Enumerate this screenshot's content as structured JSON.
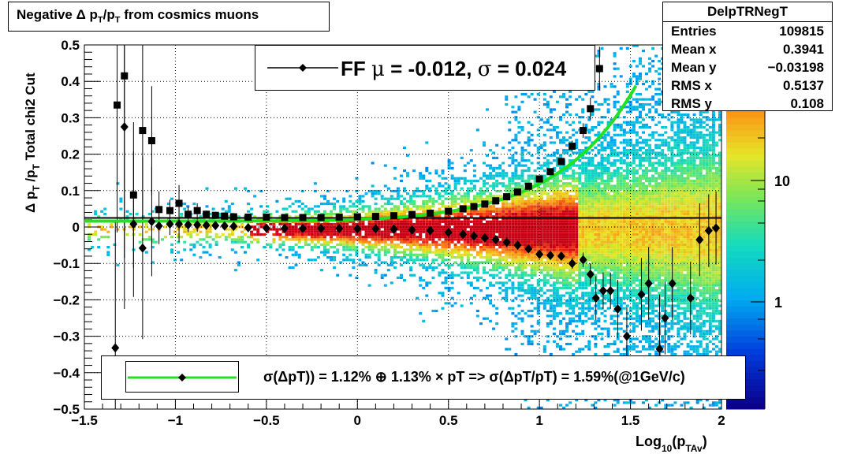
{
  "title": "Negative Δ pₜ/pₜ from cosmics muons",
  "title_parts": {
    "main": "Negative Δ p",
    "sub1": "T",
    "mid": "/p",
    "sub2": "T",
    "tail": "  from cosmics muons"
  },
  "stats": {
    "name": "DelpTRNegT",
    "rows": [
      {
        "key": "Entries",
        "value": "109815"
      },
      {
        "key": "Mean x",
        "value": "0.3941"
      },
      {
        "key": "Mean y",
        "value": "−0.03198"
      },
      {
        "key": "RMS x",
        "value": "0.5137"
      },
      {
        "key": "RMS y",
        "value": "0.108"
      }
    ]
  },
  "fit_label": {
    "prefix": "FF ",
    "mu": "μ",
    "mid": " = -0.012, ",
    "sigma": "σ",
    "tail": " =   0.024"
  },
  "legend_text": "σ(ΔpT)) =  1.12% ⊕  1.13% × pT => σ(ΔpT/pT) =  1.59%(@1GeV/c)",
  "y_axis_title": {
    "delta": "Δ p",
    "sub1": "T",
    "slash": " /p",
    "sub2": "T",
    "cut": "  Total chi2 Cut"
  },
  "x_axis_title": {
    "log": "Log",
    "sub": "10",
    "p": "(p",
    "sub2": "TAv",
    "close": ")"
  },
  "colors": {
    "fit_curve": "#22e022",
    "markers": "#000000",
    "hline": "#000000"
  },
  "chart_data": {
    "type": "scatter",
    "xlim": [
      -1.5,
      2.0
    ],
    "ylim": [
      -0.5,
      0.5
    ],
    "x_ticks": [
      "−1.5",
      "−1",
      "−0.5",
      "0",
      "0.5",
      "1",
      "1.5",
      "2"
    ],
    "y_ticks": [
      "−0.5",
      "−0.4",
      "−0.3",
      "−0.2",
      "−0.1",
      "0",
      "0.1",
      "0.2",
      "0.3",
      "0.4",
      "0.5"
    ],
    "z_ticks": [
      "1",
      "10"
    ],
    "grid": true,
    "hline_y": 0.025,
    "series": [
      {
        "marker": "square",
        "points": [
          [
            -1.32,
            0.335,
            0.35
          ],
          [
            -1.28,
            0.415,
            0.5
          ],
          [
            -1.23,
            0.088,
            0.2
          ],
          [
            -1.18,
            0.265,
            0.25
          ],
          [
            -1.13,
            0.237,
            0.15
          ],
          [
            -1.09,
            0.048,
            0.05
          ],
          [
            -1.03,
            0.045,
            0.03
          ],
          [
            -0.98,
            0.065,
            0.05
          ],
          [
            -0.93,
            0.035,
            0.02
          ],
          [
            -0.88,
            0.045,
            0.02
          ],
          [
            -0.83,
            0.035,
            0.01
          ],
          [
            -0.78,
            0.032,
            0.01
          ],
          [
            -0.73,
            0.03,
            0.005
          ],
          [
            -0.68,
            0.028,
            0.004
          ],
          [
            -0.6,
            0.027,
            0.003
          ],
          [
            -0.5,
            0.027,
            0.003
          ],
          [
            -0.4,
            0.026,
            0.002
          ],
          [
            -0.3,
            0.026,
            0.002
          ],
          [
            -0.2,
            0.026,
            0.002
          ],
          [
            -0.1,
            0.027,
            0.002
          ],
          [
            0.0,
            0.028,
            0.002
          ],
          [
            0.1,
            0.029,
            0.002
          ],
          [
            0.2,
            0.031,
            0.002
          ],
          [
            0.3,
            0.034,
            0.002
          ],
          [
            0.4,
            0.038,
            0.002
          ],
          [
            0.5,
            0.043,
            0.003
          ],
          [
            0.58,
            0.05,
            0.003
          ],
          [
            0.64,
            0.056,
            0.003
          ],
          [
            0.7,
            0.063,
            0.003
          ],
          [
            0.76,
            0.072,
            0.004
          ],
          [
            0.82,
            0.083,
            0.004
          ],
          [
            0.88,
            0.096,
            0.005
          ],
          [
            0.94,
            0.112,
            0.006
          ],
          [
            1.0,
            0.132,
            0.007
          ],
          [
            1.06,
            0.152,
            0.009
          ],
          [
            1.12,
            0.18,
            0.01
          ],
          [
            1.18,
            0.222,
            0.015
          ],
          [
            1.24,
            0.265,
            0.02
          ],
          [
            1.28,
            0.325,
            0.03
          ],
          [
            1.33,
            0.435,
            0.06
          ]
        ]
      },
      {
        "marker": "diamond",
        "points": [
          [
            -1.33,
            -0.332,
            0.35
          ],
          [
            -1.28,
            0.275,
            0.5
          ],
          [
            -1.23,
            0.008,
            0.2
          ],
          [
            -1.18,
            -0.058,
            0.25
          ],
          [
            -1.13,
            0.015,
            0.15
          ],
          [
            -1.09,
            0.003,
            0.05
          ],
          [
            -1.03,
            0.008,
            0.03
          ],
          [
            -0.98,
            0.008,
            0.05
          ],
          [
            -0.93,
            0.006,
            0.02
          ],
          [
            -0.88,
            0.006,
            0.02
          ],
          [
            -0.83,
            0.005,
            0.01
          ],
          [
            -0.78,
            0.004,
            0.01
          ],
          [
            -0.73,
            0.003,
            0.005
          ],
          [
            -0.68,
            0.002,
            0.004
          ],
          [
            -0.6,
            -0.002,
            0.003
          ],
          [
            -0.5,
            -0.003,
            0.003
          ],
          [
            -0.4,
            -0.004,
            0.002
          ],
          [
            -0.3,
            -0.004,
            0.002
          ],
          [
            -0.2,
            -0.004,
            0.002
          ],
          [
            -0.1,
            -0.004,
            0.002
          ],
          [
            0.0,
            -0.005,
            0.002
          ],
          [
            0.1,
            -0.005,
            0.002
          ],
          [
            0.2,
            -0.006,
            0.002
          ],
          [
            0.3,
            -0.008,
            0.002
          ],
          [
            0.4,
            -0.01,
            0.002
          ],
          [
            0.5,
            -0.015,
            0.003
          ],
          [
            0.58,
            -0.02,
            0.003
          ],
          [
            0.64,
            -0.025,
            0.003
          ],
          [
            0.7,
            -0.03,
            0.003
          ],
          [
            0.76,
            -0.035,
            0.004
          ],
          [
            0.82,
            -0.042,
            0.004
          ],
          [
            0.88,
            -0.05,
            0.005
          ],
          [
            0.94,
            -0.06,
            0.006
          ],
          [
            1.0,
            -0.075,
            0.007
          ],
          [
            1.06,
            -0.078,
            0.009
          ],
          [
            1.12,
            -0.08,
            0.01
          ],
          [
            1.18,
            -0.1,
            0.015
          ],
          [
            1.24,
            -0.09,
            0.02
          ],
          [
            1.28,
            -0.13,
            0.03
          ],
          [
            1.31,
            -0.195,
            0.06
          ],
          [
            1.35,
            -0.175,
            0.05
          ],
          [
            1.39,
            -0.175,
            0.05
          ],
          [
            1.43,
            -0.225,
            0.08
          ],
          [
            1.48,
            -0.3,
            0.08
          ],
          [
            1.56,
            -0.185,
            0.1
          ],
          [
            1.6,
            -0.155,
            0.1
          ],
          [
            1.66,
            -0.335,
            0.15
          ],
          [
            1.69,
            -0.25,
            0.1
          ],
          [
            1.73,
            -0.155,
            0.1
          ],
          [
            1.83,
            -0.195,
            0.1
          ],
          [
            1.88,
            -0.035,
            0.1
          ],
          [
            1.93,
            -0.01,
            0.1
          ],
          [
            1.97,
            -0.003,
            0.1
          ]
        ]
      }
    ],
    "fit_curve": {
      "name": "",
      "a": 0.0112,
      "b": 0.0113
    }
  }
}
